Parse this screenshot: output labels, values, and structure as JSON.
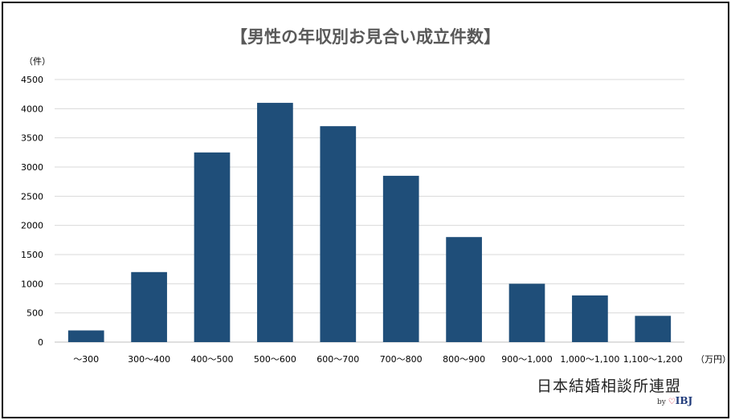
{
  "chart_data": {
    "type": "bar",
    "title": "【男性の年収別お見合い成立件数】",
    "ylabel": "（件）",
    "xlabel": "（万円）",
    "categories": [
      "～300",
      "300～400",
      "400～500",
      "500～600",
      "600～700",
      "700～800",
      "800～900",
      "900～1,000",
      "1,000～1,100",
      "1,100～1,200"
    ],
    "values": [
      200,
      1200,
      3250,
      4100,
      3700,
      2850,
      1800,
      1000,
      800,
      450
    ],
    "ylim": [
      0,
      4500
    ],
    "yticks": [
      0,
      500,
      1000,
      1500,
      2000,
      2500,
      3000,
      3500,
      4000,
      4500
    ],
    "grid": true,
    "legend": "none",
    "colors": {
      "bar": "#1f4e79",
      "grid": "#d9d9d9",
      "axis": "#bfbfbf"
    }
  },
  "branding": {
    "name": "日本結婚相談所連盟",
    "by": "by",
    "heart": "♡",
    "logo": "IBJ"
  }
}
